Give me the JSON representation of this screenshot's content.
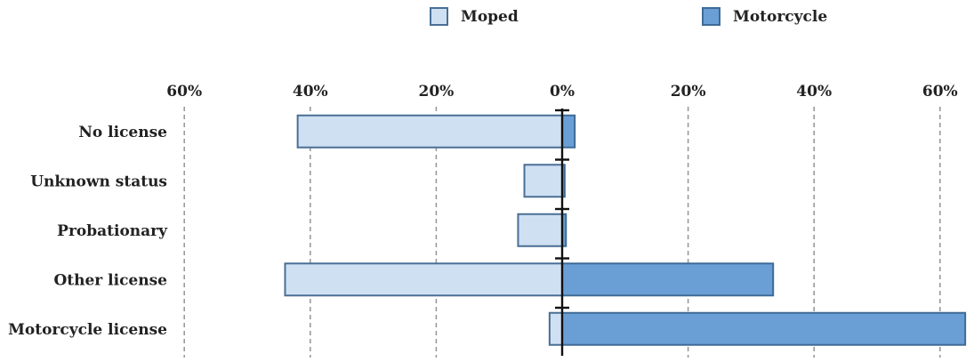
{
  "chart_data": {
    "type": "bar",
    "orientation": "horizontal",
    "diverging": true,
    "categories": [
      "No license",
      "Unknown status",
      "Probationary",
      "Other license",
      "Motorcycle license"
    ],
    "x_tick_labels": [
      "60%",
      "40%",
      "20%",
      "0%",
      "20%",
      "40%",
      "60%"
    ],
    "x_ticks": [
      -60,
      -40,
      -20,
      0,
      20,
      40,
      60
    ],
    "xlim": [
      -60,
      64
    ],
    "grid": true,
    "legend_position": "top-center",
    "series": [
      {
        "name": "Moped",
        "direction": "left",
        "color": "#cfe0f3",
        "stroke": "#4a6f96",
        "values": [
          42,
          6,
          7,
          44,
          2
        ]
      },
      {
        "name": "Motorcycle",
        "direction": "right",
        "color": "#6a9fd6",
        "stroke": "#3f6a96",
        "values": [
          2,
          0.4,
          0.6,
          33.5,
          64
        ]
      }
    ]
  }
}
